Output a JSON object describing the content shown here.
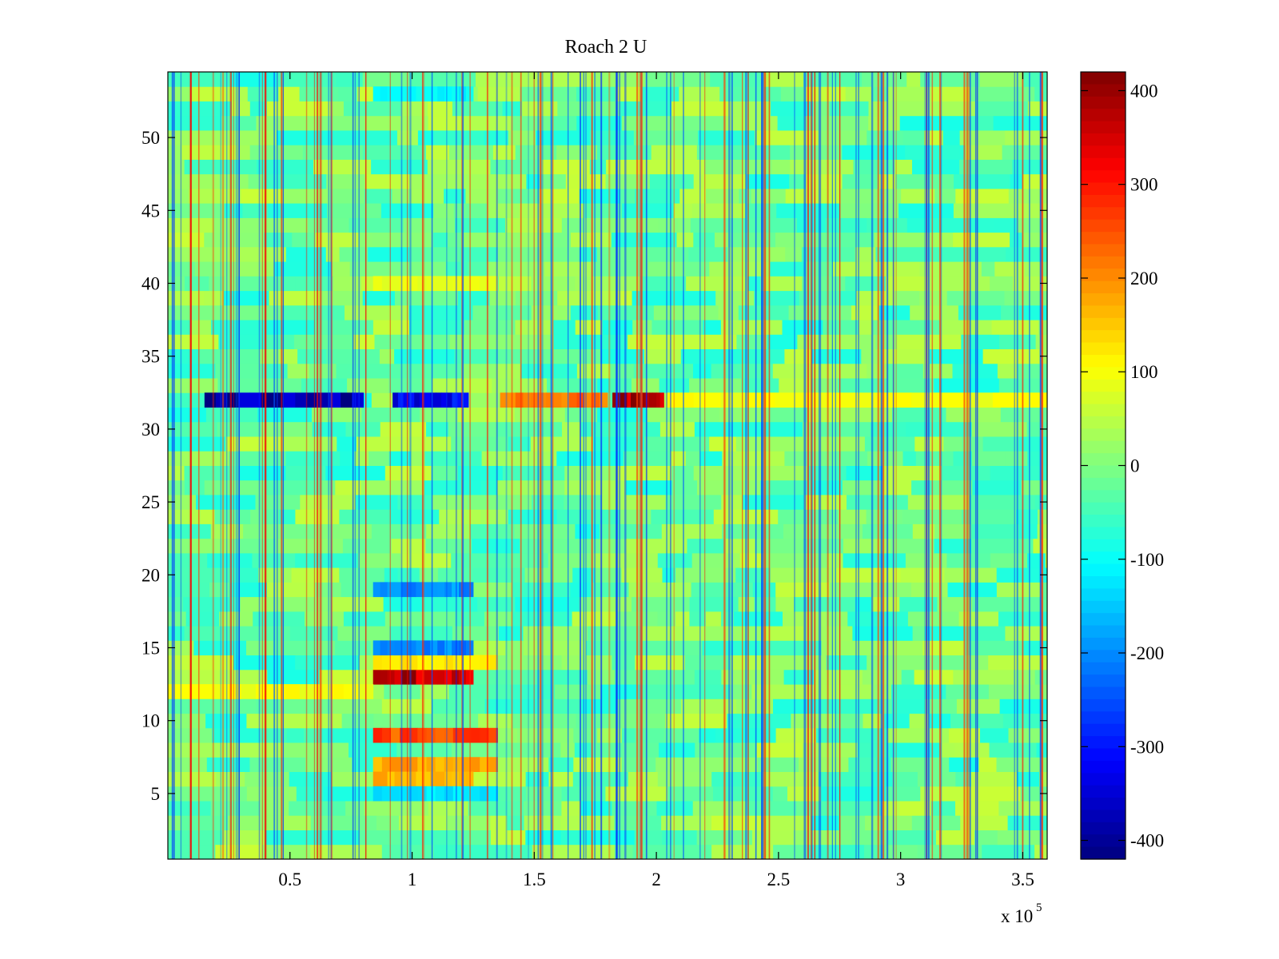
{
  "chart_data": {
    "type": "heatmap",
    "title": "Roach 2 U",
    "xlabel": "",
    "ylabel": "",
    "x_multiplier_label": "x 10",
    "x_multiplier_exponent": "5",
    "xlim": [
      0,
      3.6
    ],
    "ylim": [
      0.5,
      54.5
    ],
    "rows": 54,
    "colorscale": "jet",
    "clim": [
      -420,
      420
    ],
    "x_ticks": [
      0.5,
      1,
      1.5,
      2,
      2.5,
      3,
      3.5
    ],
    "x_tick_labels": [
      "0.5",
      "1",
      "1.5",
      "2",
      "2.5",
      "3",
      "3.5"
    ],
    "y_ticks": [
      5,
      10,
      15,
      20,
      25,
      30,
      35,
      40,
      45,
      50
    ],
    "y_tick_labels": [
      "5",
      "10",
      "15",
      "20",
      "25",
      "30",
      "35",
      "40",
      "45",
      "50"
    ],
    "colorbar_ticks": [
      400,
      300,
      200,
      100,
      0,
      -100,
      -200,
      -300,
      -400
    ],
    "colorbar_tick_labels": [
      "400",
      "300",
      "200",
      "100",
      "0",
      "-100",
      "-200",
      "-300",
      "-400"
    ],
    "background_value": -20,
    "features": [
      {
        "name": "row-32-early-negative-band",
        "row": 32,
        "x0": 0.15,
        "x1": 0.8,
        "value": -400
      },
      {
        "name": "row-32-mid-negative-band",
        "row": 32,
        "x0": 0.92,
        "x1": 1.23,
        "value": -330
      },
      {
        "name": "row-32-positive-band-a",
        "row": 32,
        "x0": 1.36,
        "x1": 1.8,
        "value": 230
      },
      {
        "name": "row-32-positive-band-b",
        "row": 32,
        "x0": 1.82,
        "x1": 2.03,
        "value": 390
      },
      {
        "name": "row-32-late-positive-band",
        "row": 32,
        "x0": 2.04,
        "x1": 3.6,
        "value": 100
      },
      {
        "name": "row-13-positive-band",
        "row": 13,
        "x0": 0.84,
        "x1": 1.25,
        "value": 380
      },
      {
        "name": "row-14-positive-band",
        "row": 14,
        "x0": 0.84,
        "x1": 1.35,
        "value": 120
      },
      {
        "name": "row-9-positive-band",
        "row": 9,
        "x0": 0.84,
        "x1": 1.35,
        "value": 260
      },
      {
        "name": "row-7-positive-band",
        "row": 7,
        "x0": 0.84,
        "x1": 1.35,
        "value": 180
      },
      {
        "name": "row-6-positive-band",
        "row": 6,
        "x0": 0.84,
        "x1": 1.25,
        "value": 170
      },
      {
        "name": "row-19-negative-band",
        "row": 19,
        "x0": 0.84,
        "x1": 1.25,
        "value": -200
      },
      {
        "name": "row-15-negative-band",
        "row": 15,
        "x0": 0.84,
        "x1": 1.25,
        "value": -210
      },
      {
        "name": "row-5-negative-band",
        "row": 5,
        "x0": 0.84,
        "x1": 1.35,
        "value": -130
      },
      {
        "name": "row-12-early-positive-band",
        "row": 12,
        "x0": 0.0,
        "x1": 0.84,
        "value": 100
      },
      {
        "name": "row-40-positive-band",
        "row": 40,
        "x0": 0.84,
        "x1": 1.35,
        "value": 90
      },
      {
        "name": "row-53-negative-band",
        "row": 53,
        "x0": 0.84,
        "x1": 1.25,
        "value": -110
      }
    ],
    "vertical_streaks_note": "random narrow vertical streaks across the full range"
  }
}
